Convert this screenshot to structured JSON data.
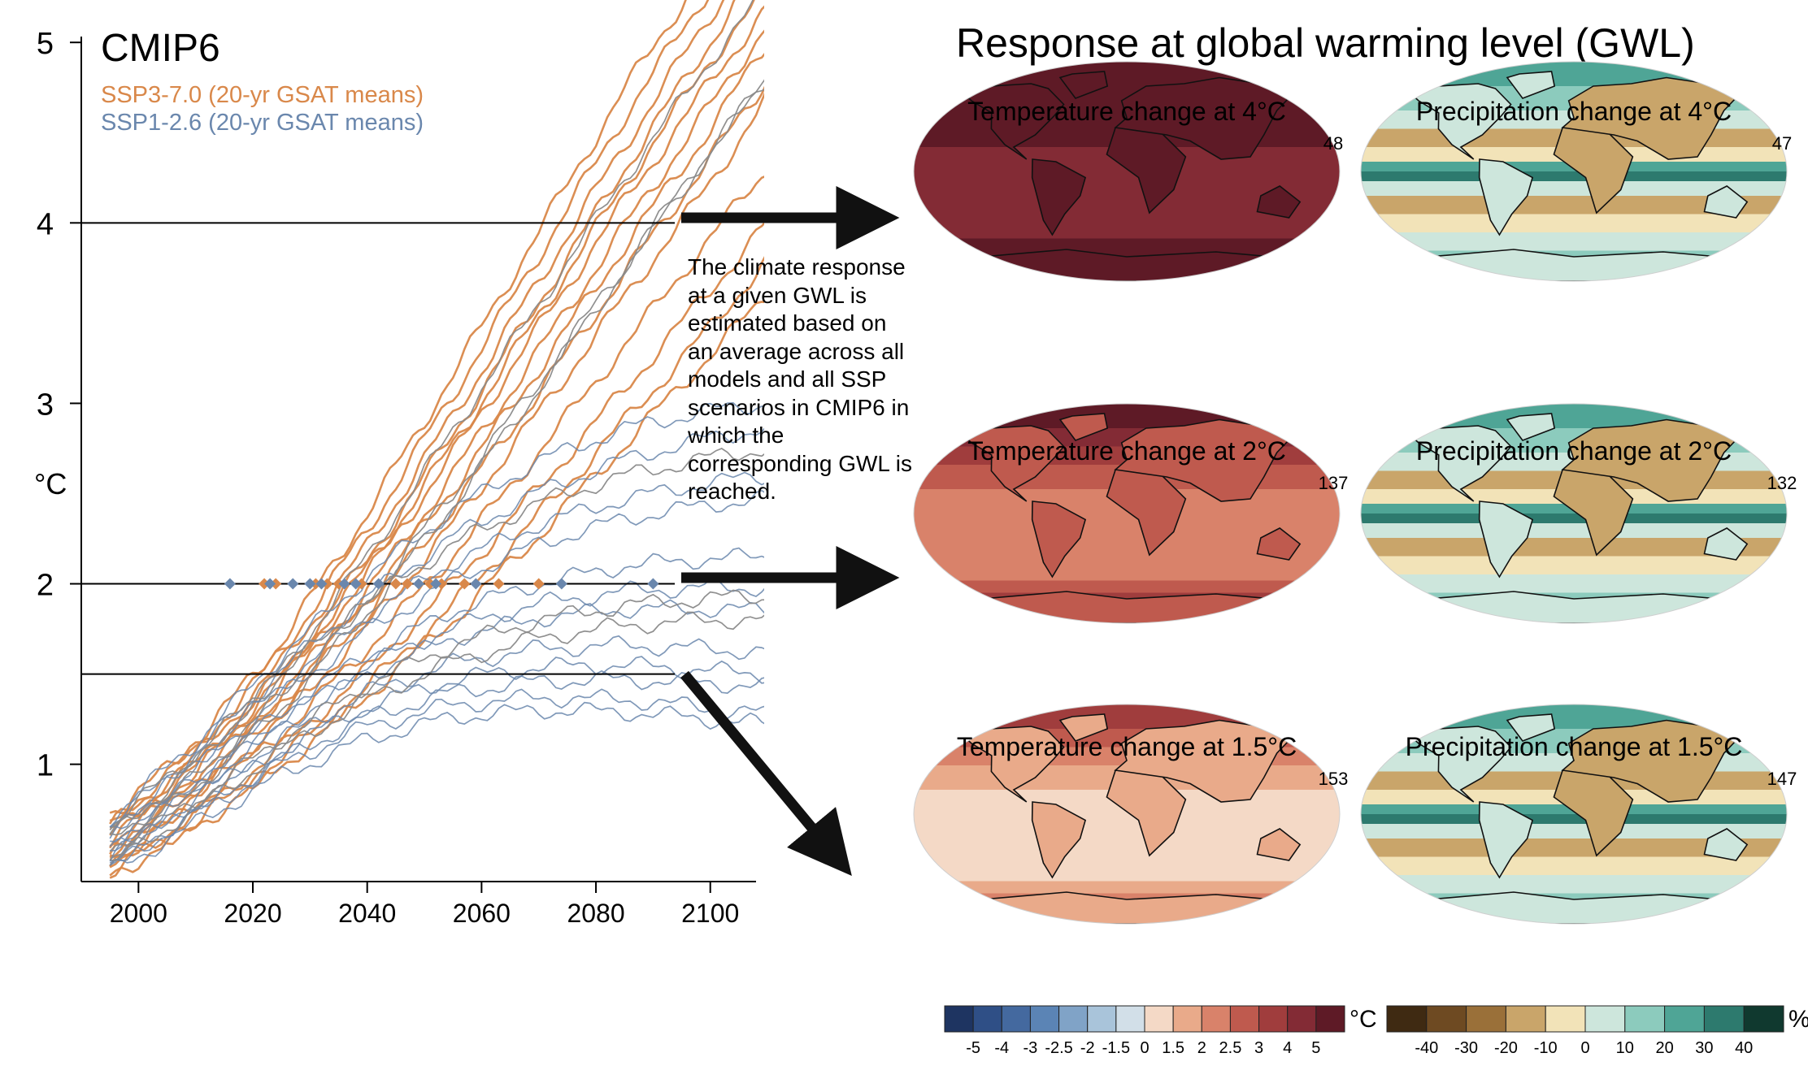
{
  "panel_left": {
    "title": "CMIP6",
    "legend": [
      {
        "label": "SSP3-7.0 (20-yr GSAT means)",
        "color": "#d9884a"
      },
      {
        "label": "SSP1-2.6 (20-yr GSAT means)",
        "color": "#6a87ad"
      }
    ]
  },
  "right_title": "Response at global warming level (GWL)",
  "explanation": "The climate response at a given GWL is estimated based on an average across all models and all SSP scenarios in CMIP6 in which the corresponding GWL is reached.",
  "maps": [
    {
      "title": "Temperature change at 4°C",
      "count": "48",
      "kind": "temp",
      "level": 4
    },
    {
      "title": "Precipitation change at 4°C",
      "count": "47",
      "kind": "precip",
      "level": 4
    },
    {
      "title": "Temperature change at 2°C",
      "count": "137",
      "kind": "temp",
      "level": 2
    },
    {
      "title": "Precipitation change at 2°C",
      "count": "132",
      "kind": "precip",
      "level": 2
    },
    {
      "title": "Temperature change at 1.5°C",
      "count": "153",
      "kind": "temp",
      "level": 1.5
    },
    {
      "title": "Precipitation change at 1.5°C",
      "count": "147",
      "kind": "precip",
      "level": 1.5
    }
  ],
  "colorbars": {
    "temp": {
      "unit": "°C",
      "ticks": [
        "-5",
        "-4",
        "-3",
        "-2.5",
        "-2",
        "-1.5",
        "0",
        "1.5",
        "2",
        "2.5",
        "3",
        "4",
        "5"
      ],
      "colors": [
        "#1e3461",
        "#2f4f86",
        "#44699f",
        "#5b84b5",
        "#80a3c7",
        "#a9c4da",
        "#d2dfe8",
        "#f4d9c6",
        "#e9aa8a",
        "#d9826a",
        "#bf5a4e",
        "#a03d3d",
        "#832b35",
        "#5e1a26"
      ]
    },
    "precip": {
      "unit": "%",
      "ticks": [
        "-40",
        "-30",
        "-20",
        "-10",
        "0",
        "10",
        "20",
        "30",
        "40"
      ],
      "colors": [
        "#3f2a12",
        "#6e4a22",
        "#9a7039",
        "#c9a56a",
        "#f2e3b8",
        "#cde6dc",
        "#8ccbbd",
        "#4fa596",
        "#2d7a6e",
        "#10392f"
      ]
    }
  },
  "chart_data": {
    "type": "line",
    "title": "CMIP6",
    "xlabel": "",
    "ylabel": "°C",
    "xlim": [
      1990,
      2108
    ],
    "ylim": [
      0.35,
      5.1
    ],
    "xticks": [
      2000,
      2020,
      2040,
      2060,
      2080,
      2100
    ],
    "yticks": [
      1,
      2,
      3,
      4,
      5
    ],
    "grid": false,
    "legend_position": "top-left",
    "reference_lines": [
      4,
      2,
      1.5
    ],
    "series_groups": [
      {
        "name": "SSP3-7.0 (20-yr GSAT means)",
        "color": "#d9884a",
        "x": [
          1995,
          2010,
          2025,
          2040,
          2055,
          2070,
          2085,
          2100,
          2110
        ],
        "members": [
          [
            0.58,
            0.96,
            1.45,
            2.05,
            2.72,
            3.42,
            4.12,
            4.78,
            5.2
          ],
          [
            0.65,
            1.04,
            1.56,
            2.21,
            2.93,
            3.68,
            4.43,
            5.15,
            5.6
          ],
          [
            0.52,
            0.89,
            1.35,
            1.91,
            2.53,
            3.19,
            3.87,
            4.52,
            5.0
          ],
          [
            0.7,
            1.12,
            1.68,
            2.39,
            3.16,
            3.95,
            4.74,
            5.45,
            5.8
          ],
          [
            0.48,
            0.82,
            1.25,
            1.76,
            2.33,
            2.95,
            3.59,
            4.22,
            4.7
          ],
          [
            0.62,
            1.0,
            1.5,
            2.13,
            2.83,
            3.56,
            4.3,
            5.0,
            5.5
          ],
          [
            0.45,
            0.77,
            1.17,
            1.64,
            2.16,
            2.73,
            3.32,
            3.92,
            4.3
          ],
          [
            0.55,
            0.91,
            1.38,
            1.96,
            2.61,
            3.29,
            3.98,
            4.65,
            5.1
          ],
          [
            0.42,
            0.72,
            1.09,
            1.52,
            2.0,
            2.53,
            3.08,
            3.63,
            4.0
          ],
          [
            0.68,
            1.08,
            1.62,
            2.3,
            3.05,
            3.82,
            4.59,
            5.3,
            5.7
          ],
          [
            0.5,
            0.85,
            1.3,
            1.84,
            2.43,
            3.06,
            3.72,
            4.36,
            4.8
          ],
          [
            0.4,
            0.68,
            1.03,
            1.43,
            1.88,
            2.38,
            2.9,
            3.42,
            3.8
          ],
          [
            0.6,
            0.98,
            1.47,
            2.09,
            2.77,
            3.49,
            4.21,
            4.9,
            5.3
          ],
          [
            0.38,
            0.65,
            0.99,
            1.38,
            1.8,
            2.27,
            2.77,
            3.27,
            3.6
          ]
        ]
      },
      {
        "name": "SSP1-2.6 (20-yr GSAT means)",
        "color": "#6a87ad",
        "x": [
          1995,
          2010,
          2025,
          2040,
          2055,
          2070,
          2085,
          2100,
          2110
        ],
        "members": [
          [
            0.6,
            0.97,
            1.38,
            1.74,
            2.02,
            2.22,
            2.36,
            2.44,
            2.47
          ],
          [
            0.52,
            0.86,
            1.21,
            1.5,
            1.7,
            1.81,
            1.86,
            1.86,
            1.85
          ],
          [
            0.46,
            0.77,
            1.08,
            1.32,
            1.47,
            1.54,
            1.55,
            1.52,
            1.5
          ],
          [
            0.66,
            1.06,
            1.52,
            1.93,
            2.26,
            2.51,
            2.69,
            2.81,
            2.86
          ],
          [
            0.43,
            0.72,
            1.0,
            1.21,
            1.33,
            1.37,
            1.36,
            1.31,
            1.28
          ],
          [
            0.56,
            0.91,
            1.29,
            1.61,
            1.85,
            2.0,
            2.1,
            2.14,
            2.15
          ],
          [
            0.7,
            1.12,
            1.6,
            2.04,
            2.41,
            2.68,
            2.86,
            2.96,
            3.0
          ],
          [
            0.49,
            0.81,
            1.14,
            1.4,
            1.56,
            1.64,
            1.66,
            1.64,
            1.62
          ],
          [
            0.4,
            0.67,
            0.94,
            1.14,
            1.26,
            1.3,
            1.29,
            1.25,
            1.22
          ],
          [
            0.63,
            1.01,
            1.44,
            1.82,
            2.12,
            2.33,
            2.47,
            2.56,
            2.6
          ],
          [
            0.54,
            0.88,
            1.25,
            1.55,
            1.76,
            1.89,
            1.96,
            1.98,
            1.98
          ],
          [
            0.44,
            0.74,
            1.03,
            1.26,
            1.4,
            1.46,
            1.47,
            1.45,
            1.43
          ]
        ]
      },
      {
        "name": "",
        "color": "#8a8a8a",
        "x": [
          1995,
          2010,
          2025,
          2040,
          2055,
          2070,
          2085,
          2100,
          2110
        ],
        "members": [
          [
            0.6,
            1.0,
            1.52,
            2.15,
            2.85,
            3.55,
            4.25,
            4.9,
            5.3
          ],
          [
            0.52,
            0.87,
            1.31,
            1.84,
            2.44,
            3.08,
            3.74,
            4.4,
            4.8
          ],
          [
            0.66,
            1.06,
            1.5,
            1.9,
            2.22,
            2.45,
            2.6,
            2.7,
            2.75
          ],
          [
            0.45,
            0.75,
            1.08,
            1.36,
            1.57,
            1.7,
            1.77,
            1.8,
            1.8
          ],
          [
            0.57,
            0.93,
            1.38,
            1.91,
            2.5,
            3.12,
            3.76,
            4.4,
            4.8
          ],
          [
            0.49,
            0.8,
            1.14,
            1.44,
            1.66,
            1.8,
            1.88,
            1.92,
            1.93
          ]
        ]
      }
    ],
    "gwl_markers": {
      "level": 2,
      "ssp3_7_0_years": [
        2022,
        2024,
        2031,
        2033,
        2035,
        2039,
        2045,
        2047,
        2051,
        2053,
        2057,
        2063,
        2070
      ],
      "ssp1_2_6_years": [
        2016,
        2023,
        2027,
        2030,
        2032,
        2036,
        2038,
        2042,
        2049,
        2052,
        2059,
        2074,
        2090
      ]
    }
  }
}
